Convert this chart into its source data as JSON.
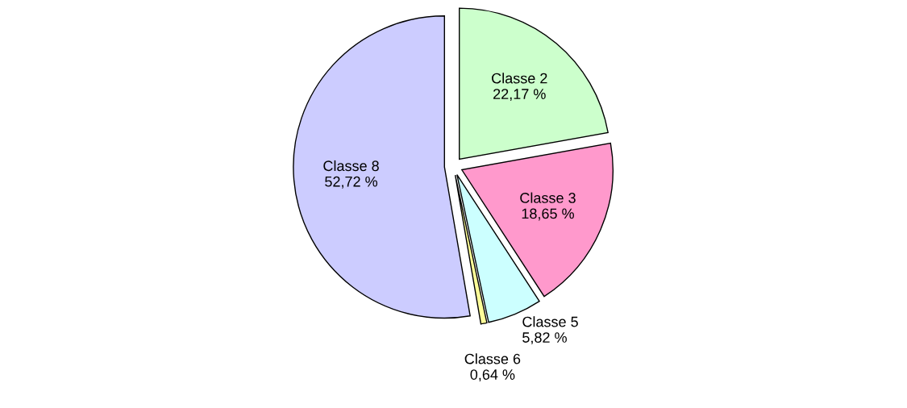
{
  "chart_data": {
    "type": "pie",
    "categories": [
      "Classe 2",
      "Classe 3",
      "Classe 5",
      "Classe 6",
      "Classe 8"
    ],
    "values": [
      22.17,
      18.65,
      5.82,
      0.64,
      52.72
    ],
    "value_labels": [
      "22,17 %",
      "18,65 %",
      "5,82 %",
      "0,64 %",
      "52,72 %"
    ],
    "colors": [
      "#ccffcc",
      "#ff99cc",
      "#ccffff",
      "#ffff99",
      "#ccccff"
    ],
    "legend": false
  }
}
